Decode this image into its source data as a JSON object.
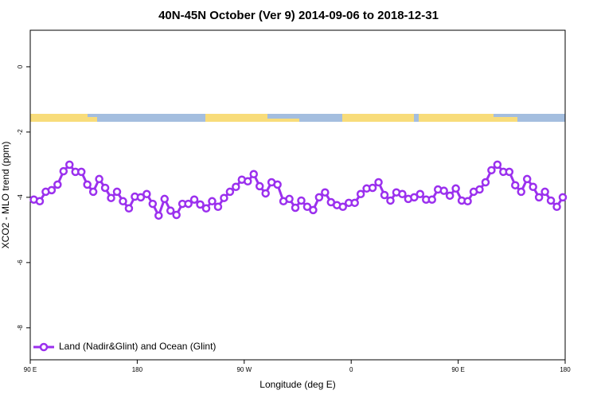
{
  "chart_data": {
    "type": "line",
    "title": "40N-45N October (Ver 9)   2014-09-06 to 2018-12-31",
    "x_label": "Longitude (deg E)",
    "y_label": "XCO2 - MLO trend (ppm)",
    "xlim": [
      90,
      540
    ],
    "xticks": [
      {
        "value": 90,
        "label": "90 E"
      },
      {
        "value": 180,
        "label": "180"
      },
      {
        "value": 270,
        "label": "90 W"
      },
      {
        "value": 360,
        "label": "0"
      },
      {
        "value": 450,
        "label": "90 E"
      },
      {
        "value": 540,
        "label": "180"
      }
    ],
    "ylim": [
      -8.98,
      1.12
    ],
    "yticks": [
      0,
      -2,
      -4,
      -6,
      -8
    ],
    "legend": "bottom-left",
    "x": [
      93,
      98,
      103,
      108,
      113,
      118,
      123,
      128,
      133,
      138,
      143,
      148,
      153,
      158,
      163,
      168,
      173,
      178,
      183,
      188,
      193,
      198,
      203,
      208,
      213,
      218,
      223,
      228,
      233,
      238,
      243,
      248,
      253,
      258,
      263,
      268,
      273,
      278,
      283,
      288,
      293,
      298,
      303,
      308,
      313,
      318,
      323,
      328,
      333,
      338,
      343,
      348,
      353,
      358,
      363,
      368,
      373,
      378,
      383,
      388,
      393,
      398,
      403,
      408,
      413,
      418,
      423,
      428,
      433,
      438,
      443,
      448,
      453,
      458,
      463,
      468,
      473,
      478,
      483,
      488,
      493,
      498,
      503,
      508,
      513,
      518,
      523,
      528,
      533,
      538
    ],
    "series": [
      {
        "name": "Land (Nadir&Glint) and Ocean (Glint)",
        "color": "#9b30ee",
        "values": [
          -4.07,
          -4.12,
          -3.83,
          -3.78,
          -3.61,
          -3.2,
          -3.0,
          -3.22,
          -3.22,
          -3.61,
          -3.83,
          -3.44,
          -3.71,
          -4.02,
          -3.83,
          -4.12,
          -4.34,
          -3.98,
          -4.0,
          -3.9,
          -4.2,
          -4.56,
          -4.05,
          -4.41,
          -4.54,
          -4.2,
          -4.2,
          -4.07,
          -4.22,
          -4.34,
          -4.12,
          -4.29,
          -4.02,
          -3.83,
          -3.68,
          -3.46,
          -3.51,
          -3.29,
          -3.66,
          -3.88,
          -3.54,
          -3.61,
          -4.12,
          -4.05,
          -4.32,
          -4.1,
          -4.29,
          -4.39,
          -4.0,
          -3.85,
          -4.15,
          -4.24,
          -4.29,
          -4.17,
          -4.17,
          -3.9,
          -3.73,
          -3.71,
          -3.54,
          -3.93,
          -4.1,
          -3.85,
          -3.9,
          -4.05,
          -4.0,
          -3.9,
          -4.07,
          -4.07,
          -3.76,
          -3.8,
          -3.95,
          -3.73,
          -4.1,
          -4.12,
          -3.83,
          -3.76,
          -3.54,
          -3.17,
          -3.0,
          -3.22,
          -3.22,
          -3.63,
          -3.83,
          -3.44,
          -3.68,
          -4.0,
          -3.83,
          -4.1,
          -4.29,
          -4.0
        ]
      }
    ]
  }
}
